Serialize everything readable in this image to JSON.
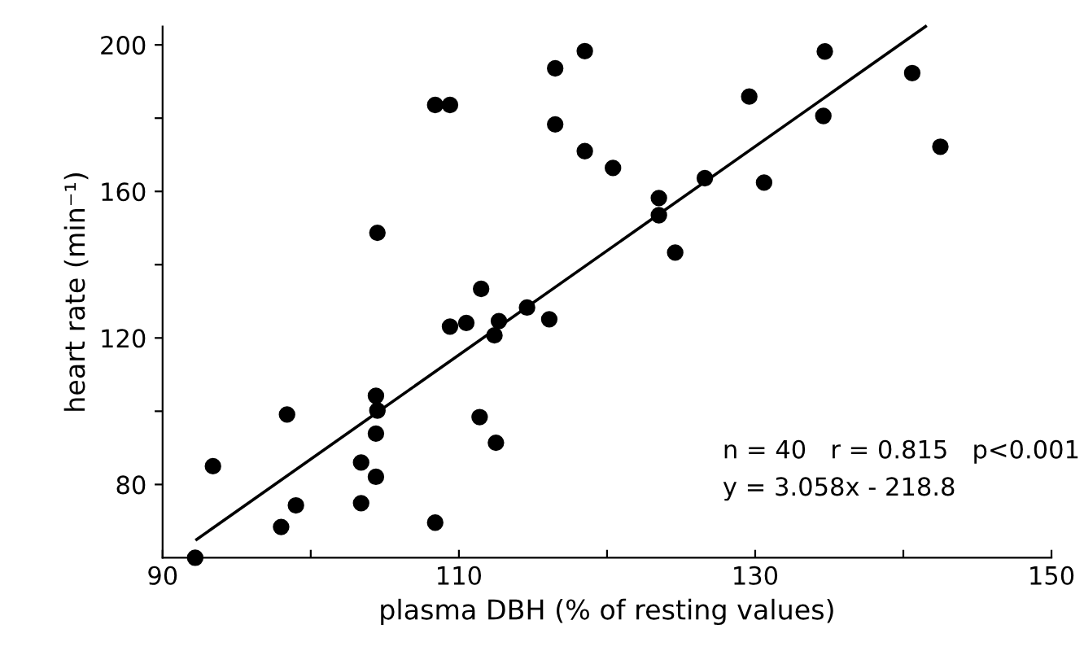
{
  "chart_data": {
    "type": "scatter",
    "xlabel": "plasma DBH (% of resting values)",
    "ylabel": "heart rate (min⁻¹)",
    "xlim": [
      90,
      150
    ],
    "ylim": [
      60,
      205
    ],
    "xticks": [
      90,
      {
        "value": 100,
        "label": null
      },
      110,
      {
        "value": 120,
        "label": null
      },
      130,
      {
        "value": 140,
        "label": null
      },
      150
    ],
    "yticks": [
      80,
      {
        "value": 100,
        "label": null
      },
      120,
      {
        "value": 140,
        "label": null
      },
      160,
      {
        "value": 180,
        "label": null
      },
      200
    ],
    "grid": false,
    "legend": false,
    "series": [
      {
        "color": "#000000",
        "marker": "circle",
        "x": [
          108.4,
          109.4,
          116.5,
          116.5,
          118.5,
          118.5,
          104.5,
          111.5,
          120.4,
          123.5,
          123.5,
          126.6,
          124.6,
          129.6,
          130.6,
          134.7,
          134.6,
          140.6,
          142.5,
          116.1,
          109.4,
          110.5,
          112.7,
          112.4,
          114.6,
          111.4,
          112.5,
          104.4,
          104.5,
          104.4,
          103.4,
          104.4,
          103.4,
          108.4,
          98.4,
          93.4,
          99.0,
          98.0,
          92.2
        ],
        "values": [
          183.6,
          183.6,
          193.6,
          178.3,
          198.3,
          171.0,
          148.7,
          133.4,
          166.4,
          158.2,
          153.5,
          163.6,
          143.3,
          185.9,
          162.4,
          198.2,
          180.6,
          192.3,
          172.2,
          125.1,
          123.1,
          124.1,
          124.6,
          120.7,
          128.3,
          98.4,
          91.4,
          104.2,
          100.2,
          93.9,
          86.0,
          82.1,
          74.9,
          69.6,
          99.1,
          85.0,
          74.3,
          68.4,
          60
        ]
      },
      {
        "type": "line",
        "color": "#000000",
        "marker": "none",
        "line_style": "solid",
        "x": [
          92.3,
          141.5
        ],
        "values": [
          65,
          205
        ]
      }
    ],
    "annotations": [
      "n = 40   r = 0.815   p<0.001",
      "y = 3.058x - 218.8"
    ]
  }
}
